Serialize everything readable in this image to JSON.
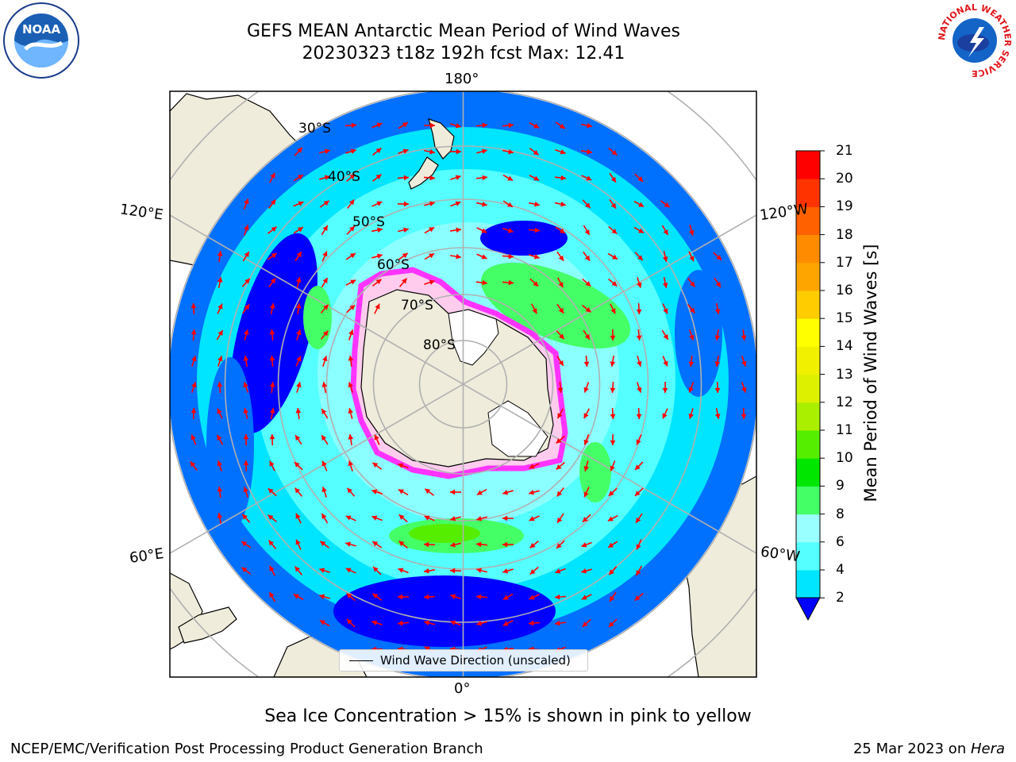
{
  "header": {
    "title_line1": "GEFS MEAN Antarctic Mean Period of Wind Waves",
    "title_line2": "20230323 t18z 192h fcst   Max: 12.41"
  },
  "logos": {
    "left_icon": "noaa-logo",
    "right_icon": "nws-logo",
    "right_ring_text": "NATIONAL WEATHER SERVICE"
  },
  "map": {
    "projection": "south-polar-stereographic",
    "longitude_labels": {
      "top": "180°",
      "bottom": "0°",
      "upper_left": "120°E",
      "upper_right": "120°W",
      "lower_left": "60°E",
      "lower_right": "60°W"
    },
    "latitude_labels": [
      "30°S",
      "40°S",
      "50°S",
      "60°S",
      "70°S",
      "80°S"
    ],
    "arrow_color": "#ff0000",
    "land_color": "#efecdb",
    "sea_ice_colors": [
      "#ff33ff",
      "#ff99cc",
      "#ffcc33",
      "#ffff00"
    ]
  },
  "colorbar": {
    "label": "Mean Period of Wind Waves [s]",
    "ticks": [
      "2",
      "4",
      "6",
      "8",
      "9",
      "10",
      "11",
      "12",
      "13",
      "14",
      "15",
      "16",
      "17",
      "18",
      "19",
      "20",
      "21"
    ],
    "colors": [
      "#0070ff",
      "#00e5ff",
      "#55ffff",
      "#99ffff",
      "#44ff66",
      "#00e600",
      "#55ee00",
      "#aaee00",
      "#ddf000",
      "#f0f000",
      "#ffff00",
      "#ffcc00",
      "#ffa500",
      "#ff8c00",
      "#ff6000",
      "#ff3300",
      "#ff0000"
    ],
    "under_color": "#0000ff"
  },
  "legend": {
    "label": "Wind Wave Direction (unscaled)"
  },
  "footer": {
    "note": "Sea Ice Concentration > 15% is shown in pink to yellow",
    "credit": "NCEP/EMC/Verification Post Processing Product Generation Branch",
    "date": "25 Mar 2023 on ",
    "machine": "Hera"
  }
}
